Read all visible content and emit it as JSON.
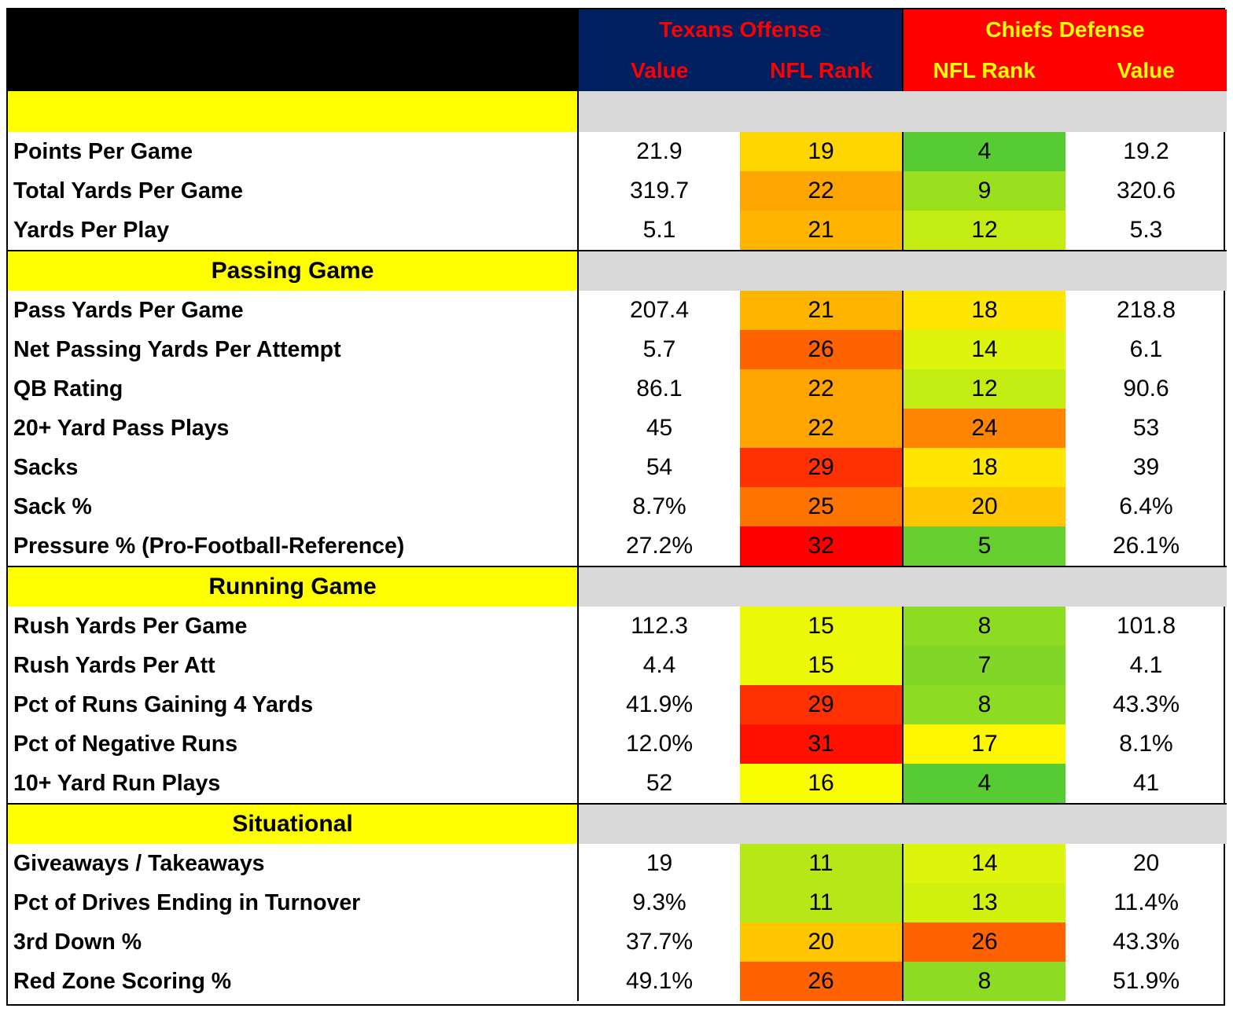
{
  "chart_data": {
    "type": "table",
    "header": {
      "team1": "Texans Offense",
      "team2": "Chiefs Defense",
      "columns": [
        "Value",
        "NFL Rank",
        "NFL Rank",
        "Value"
      ]
    },
    "sections": [
      {
        "title": "",
        "rows": [
          {
            "label": "Points Per Game",
            "off_value": "21.9",
            "off_rank": 19,
            "def_rank": 4,
            "def_value": "19.2"
          },
          {
            "label": "Total Yards Per Game",
            "off_value": "319.7",
            "off_rank": 22,
            "def_rank": 9,
            "def_value": "320.6"
          },
          {
            "label": "Yards Per Play",
            "off_value": "5.1",
            "off_rank": 21,
            "def_rank": 12,
            "def_value": "5.3"
          }
        ]
      },
      {
        "title": "Passing Game",
        "rows": [
          {
            "label": "Pass Yards Per Game",
            "off_value": "207.4",
            "off_rank": 21,
            "def_rank": 18,
            "def_value": "218.8"
          },
          {
            "label": "Net Passing Yards Per Attempt",
            "off_value": "5.7",
            "off_rank": 26,
            "def_rank": 14,
            "def_value": "6.1"
          },
          {
            "label": "QB Rating",
            "off_value": "86.1",
            "off_rank": 22,
            "def_rank": 12,
            "def_value": "90.6"
          },
          {
            "label": "20+ Yard Pass Plays",
            "off_value": "45",
            "off_rank": 22,
            "def_rank": 24,
            "def_value": "53"
          },
          {
            "label": "Sacks",
            "off_value": "54",
            "off_rank": 29,
            "def_rank": 18,
            "def_value": "39"
          },
          {
            "label": "Sack %",
            "off_value": "8.7%",
            "off_rank": 25,
            "def_rank": 20,
            "def_value": "6.4%"
          },
          {
            "label": "Pressure % (Pro-Football-Reference)",
            "off_value": "27.2%",
            "off_rank": 32,
            "def_rank": 5,
            "def_value": "26.1%"
          }
        ]
      },
      {
        "title": "Running Game",
        "rows": [
          {
            "label": "Rush Yards Per Game",
            "off_value": "112.3",
            "off_rank": 15,
            "def_rank": 8,
            "def_value": "101.8"
          },
          {
            "label": "Rush Yards Per Att",
            "off_value": "4.4",
            "off_rank": 15,
            "def_rank": 7,
            "def_value": "4.1"
          },
          {
            "label": "Pct of Runs Gaining 4 Yards",
            "off_value": "41.9%",
            "off_rank": 29,
            "def_rank": 8,
            "def_value": "43.3%"
          },
          {
            "label": "Pct of Negative Runs",
            "off_value": "12.0%",
            "off_rank": 31,
            "def_rank": 17,
            "def_value": "8.1%"
          },
          {
            "label": "10+ Yard Run Plays",
            "off_value": "52",
            "off_rank": 16,
            "def_rank": 4,
            "def_value": "41"
          }
        ]
      },
      {
        "title": "Situational",
        "rows": [
          {
            "label": "Giveaways / Takeaways",
            "off_value": "19",
            "off_rank": 11,
            "def_rank": 14,
            "def_value": "20"
          },
          {
            "label": "Pct of Drives Ending in Turnover",
            "off_value": "9.3%",
            "off_rank": 11,
            "def_rank": 13,
            "def_value": "11.4%"
          },
          {
            "label": "3rd Down %",
            "off_value": "37.7%",
            "off_rank": 20,
            "def_rank": 26,
            "def_value": "43.3%"
          },
          {
            "label": "Red Zone Scoring %",
            "off_value": "49.1%",
            "off_rank": 26,
            "def_rank": 8,
            "def_value": "51.9%"
          }
        ]
      }
    ],
    "colors": {
      "texans_header_bg": "#002060",
      "texans_header_text": "#ff0000",
      "chiefs_header_bg": "#ff0000",
      "chiefs_header_text": "#ffff00",
      "section_title_bg": "#ffff00",
      "section_band_bg": "#d9d9d9",
      "rank_best": "#2fbe3f",
      "rank_mid": "#ffff00",
      "rank_worst": "#ff0000"
    }
  }
}
